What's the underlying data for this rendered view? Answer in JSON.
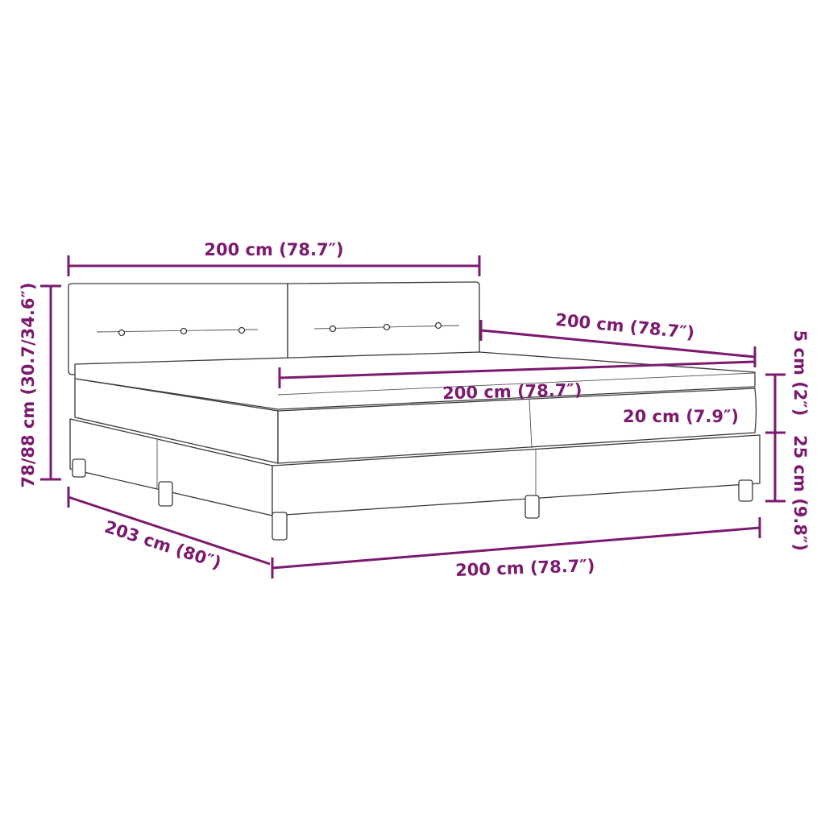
{
  "diagram": {
    "subject": "Box spring bed with headboard, mattress and topper",
    "line_color": "#7b1a6e",
    "labels": {
      "headboard_width": "200 cm (78.7″)",
      "total_height": "78/88 cm (30.7/34.6″)",
      "topper_length": "200 cm (78.7″)",
      "mattress_width": "200 cm (78.7″)",
      "topper_thickness": "5 cm (2″)",
      "mattress_thickness": "20 cm (7.9″)",
      "base_height": "25 cm (9.8″)",
      "base_length": "203 cm (80″)",
      "base_width": "200 cm (78.7″)"
    }
  }
}
